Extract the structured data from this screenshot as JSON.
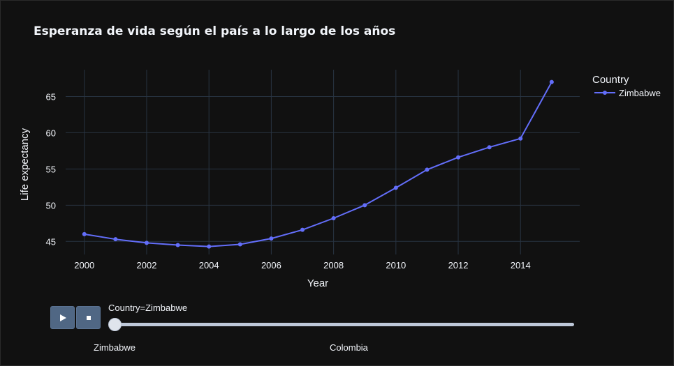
{
  "chart_data": {
    "type": "line",
    "title": "Esperanza de vida según el país a lo largo de los años",
    "xlabel": "Year",
    "ylabel": "Life expectancy",
    "x_ticks": [
      2000,
      2002,
      2004,
      2006,
      2008,
      2010,
      2012,
      2014
    ],
    "y_ticks": [
      45,
      50,
      55,
      60,
      65
    ],
    "xlim": [
      1999.4,
      2015.9
    ],
    "ylim": [
      43.2,
      68.7
    ],
    "grid": true,
    "legend": {
      "title": "Country",
      "placement": "top-right"
    },
    "series": [
      {
        "name": "Zimbabwe",
        "color": "#636efa",
        "x": [
          2000,
          2001,
          2002,
          2003,
          2004,
          2005,
          2006,
          2007,
          2008,
          2009,
          2010,
          2011,
          2012,
          2013,
          2014,
          2015
        ],
        "y": [
          46.0,
          45.3,
          44.8,
          44.5,
          44.3,
          44.6,
          45.4,
          46.6,
          48.2,
          50.0,
          52.4,
          54.9,
          56.6,
          58.0,
          59.2,
          67.0
        ]
      }
    ]
  },
  "animation": {
    "play_icon": "play-icon",
    "stop_icon": "stop-icon",
    "slider_prefix_label": "Country=Zimbabwe",
    "current_fraction": 0,
    "steps": [
      "Zimbabwe",
      "Colombia"
    ]
  }
}
